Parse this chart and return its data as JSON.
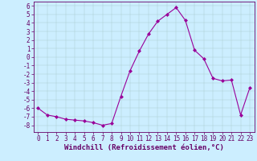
{
  "x": [
    0,
    1,
    2,
    3,
    4,
    5,
    6,
    7,
    8,
    9,
    10,
    11,
    12,
    13,
    14,
    15,
    16,
    17,
    18,
    19,
    20,
    21,
    22,
    23
  ],
  "y": [
    -6.0,
    -6.8,
    -7.0,
    -7.3,
    -7.4,
    -7.5,
    -7.7,
    -8.0,
    -7.8,
    -4.6,
    -1.6,
    0.7,
    2.7,
    4.2,
    5.0,
    5.8,
    4.3,
    0.8,
    -0.2,
    -2.5,
    -2.8,
    -2.7,
    -6.8,
    -3.6
  ],
  "line_color": "#990099",
  "marker": "D",
  "marker_size": 2,
  "bg_color": "#cceeff",
  "grid_color": "#aacccc",
  "tick_color": "#660066",
  "xlabel": "Windchill (Refroidissement éolien,°C)",
  "xlabel_color": "#660066",
  "ylim": [
    -8.8,
    6.5
  ],
  "xlim": [
    -0.5,
    23.5
  ],
  "yticks": [
    -8,
    -7,
    -6,
    -5,
    -4,
    -3,
    -2,
    -1,
    0,
    1,
    2,
    3,
    4,
    5,
    6
  ],
  "xticks": [
    0,
    1,
    2,
    3,
    4,
    5,
    6,
    7,
    8,
    9,
    10,
    11,
    12,
    13,
    14,
    15,
    16,
    17,
    18,
    19,
    20,
    21,
    22,
    23
  ],
  "tick_font_size": 5.5,
  "xlabel_font_size": 6.5,
  "spine_color": "#660066",
  "linewidth": 0.8
}
